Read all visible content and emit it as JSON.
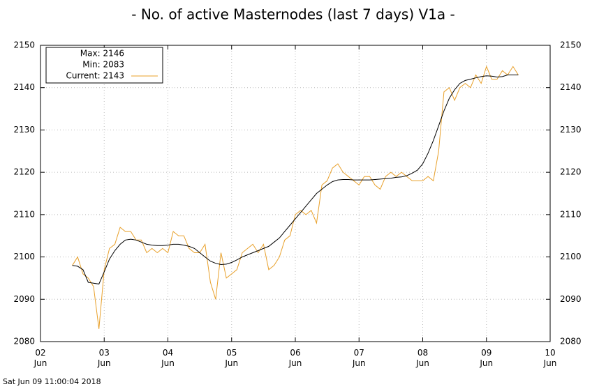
{
  "chart_data": {
    "type": "line",
    "title": "- No. of active Masternodes (last 7 days) V1a -",
    "footer": "Sat Jun 09 11:00:04 2018",
    "legend": [
      "Max: 2146",
      "Min: 2083"
    ],
    "x": [
      2.5,
      2.583,
      2.667,
      2.75,
      2.833,
      2.917,
      3,
      3.083,
      3.167,
      3.25,
      3.333,
      3.417,
      3.5,
      3.583,
      3.667,
      3.75,
      3.833,
      3.917,
      4,
      4.083,
      4.167,
      4.25,
      4.333,
      4.417,
      4.5,
      4.583,
      4.667,
      4.75,
      4.833,
      4.917,
      5,
      5.083,
      5.167,
      5.25,
      5.333,
      5.417,
      5.5,
      5.583,
      5.667,
      5.75,
      5.833,
      5.917,
      6,
      6.083,
      6.167,
      6.25,
      6.333,
      6.417,
      6.5,
      6.583,
      6.667,
      6.75,
      6.833,
      6.917,
      7,
      7.083,
      7.167,
      7.25,
      7.333,
      7.417,
      7.5,
      7.583,
      7.667,
      7.75,
      7.833,
      7.917,
      8,
      8.083,
      8.167,
      8.25,
      8.333,
      8.417,
      8.5,
      8.583,
      8.667,
      8.75,
      8.833,
      8.917,
      9,
      9.083,
      9.167,
      9.25,
      9.333,
      9.417,
      9.5
    ],
    "series": [
      {
        "name": "Current: 2143",
        "color": "#e8a02a",
        "values": [
          2098,
          2100,
          2096,
          2095,
          2093,
          2083,
          2097,
          2102,
          2103,
          2107,
          2106,
          2106,
          2104,
          2104,
          2101,
          2102,
          2101,
          2102,
          2101,
          2106,
          2105,
          2105,
          2102,
          2101,
          2101,
          2103,
          2094,
          2090,
          2101,
          2095,
          2096,
          2097,
          2101,
          2102,
          2103,
          2101,
          2103,
          2097,
          2098,
          2100,
          2104,
          2105,
          2110,
          2111,
          2110,
          2111,
          2108,
          2117,
          2118,
          2121,
          2122,
          2120,
          2119,
          2118,
          2117,
          2119,
          2119,
          2117,
          2116,
          2119,
          2120,
          2119,
          2120,
          2119,
          2118,
          2118,
          2118,
          2119,
          2118,
          2125,
          2139,
          2140,
          2137,
          2140,
          2141,
          2140,
          2143,
          2141,
          2145,
          2142,
          2142,
          2144,
          2143,
          2145,
          2143
        ]
      },
      {
        "color": "#000000",
        "values": [
          2098,
          2097.8,
          2097,
          2094,
          2093.8,
          2093.6,
          2096.5,
          2099.5,
          2101.5,
          2103,
          2104,
          2104.2,
          2104,
          2103.5,
          2103,
          2102.8,
          2102.7,
          2102.7,
          2102.8,
          2103,
          2103,
          2102.8,
          2102.5,
          2102,
          2101,
          2100,
          2099,
          2098.5,
          2098.2,
          2098.3,
          2098.7,
          2099.3,
          2100,
          2100.5,
          2101,
          2101.5,
          2102,
          2102.5,
          2103.5,
          2104.5,
          2106,
          2107.5,
          2109,
          2110.5,
          2112,
          2113.5,
          2115,
          2116,
          2117,
          2117.8,
          2118.2,
          2118.3,
          2118.3,
          2118.2,
          2118.2,
          2118.2,
          2118.2,
          2118.3,
          2118.4,
          2118.5,
          2118.6,
          2118.8,
          2118.9,
          2119.2,
          2119.8,
          2120.5,
          2122,
          2124.5,
          2127.5,
          2131,
          2134.5,
          2137.5,
          2139.5,
          2141,
          2141.7,
          2142,
          2142.3,
          2142.6,
          2142.8,
          2142.7,
          2142.5,
          2142.6,
          2143,
          2143,
          2143
        ]
      }
    ],
    "xlim": [
      2,
      10
    ],
    "xticks": [
      {
        "value": 2,
        "label": "02\nJun"
      },
      {
        "value": 3,
        "label": "03\nJun"
      },
      {
        "value": 4,
        "label": "04\nJun"
      },
      {
        "value": 5,
        "label": "05\nJun"
      },
      {
        "value": 6,
        "label": "06\nJun"
      },
      {
        "value": 7,
        "label": "07\nJun"
      },
      {
        "value": 8,
        "label": "08\nJun"
      },
      {
        "value": 9,
        "label": "09\nJun"
      },
      {
        "value": 10,
        "label": "10\nJun"
      }
    ],
    "ylim": [
      2080,
      2150
    ],
    "yticks": [
      2080,
      2090,
      2100,
      2110,
      2120,
      2130,
      2140,
      2150
    ],
    "grid": true
  }
}
